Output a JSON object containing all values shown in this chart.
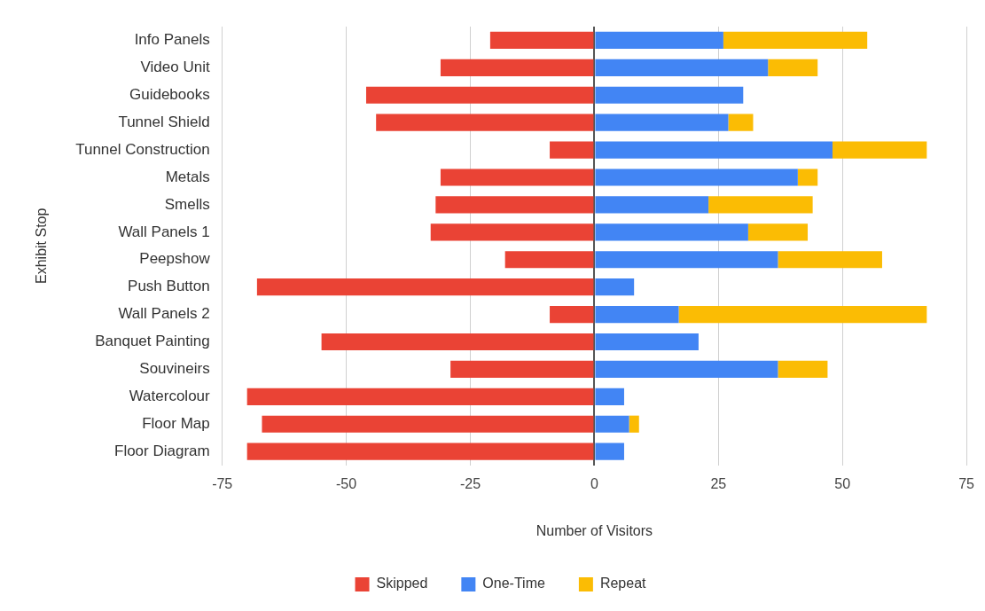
{
  "chart_data": {
    "type": "bar",
    "orientation": "horizontal",
    "stacked": true,
    "xlabel": "Number of Visitors",
    "ylabel": "Exhibit Stop",
    "categories": [
      "Info Panels",
      "Video Unit",
      "Guidebooks",
      "Tunnel Shield",
      "Tunnel Construction",
      "Metals",
      "Smells",
      "Wall Panels 1",
      "Peepshow",
      "Push Button",
      "Wall Panels 2",
      "Banquet Painting",
      "Souvineirs",
      "Watercolour",
      "Floor Map",
      "Floor Diagram"
    ],
    "series": [
      {
        "name": "Skipped",
        "color": "#ea4335",
        "values": [
          -21,
          -31,
          -46,
          -44,
          -9,
          -31,
          -32,
          -33,
          -18,
          -68,
          -9,
          -55,
          -29,
          -70,
          -67,
          -70
        ]
      },
      {
        "name": "One-Time",
        "color": "#4285f4",
        "values": [
          26,
          35,
          30,
          27,
          48,
          41,
          23,
          31,
          37,
          8,
          17,
          21,
          37,
          6,
          7,
          6
        ]
      },
      {
        "name": "Repeat",
        "color": "#fbbc04",
        "values": [
          29,
          10,
          null,
          5,
          19,
          4,
          21,
          12,
          21,
          null,
          50,
          null,
          10,
          null,
          2,
          null
        ]
      }
    ],
    "xlim": [
      -75,
      75
    ],
    "xticks": [
      -75,
      -50,
      -25,
      0,
      25,
      50,
      75
    ],
    "grid": "x",
    "legend": "bottom"
  }
}
